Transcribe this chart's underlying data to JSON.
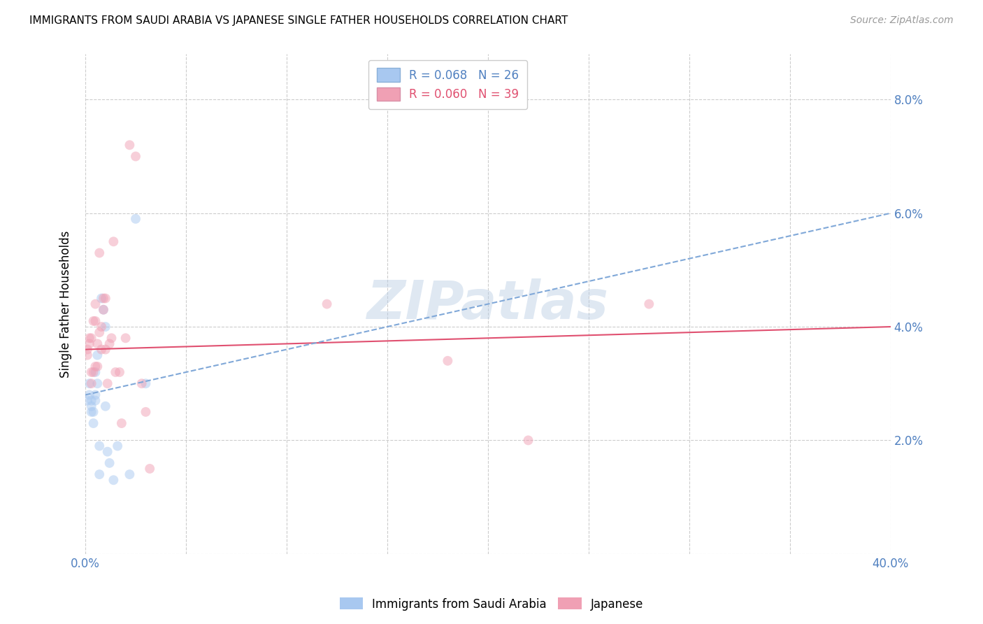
{
  "title": "IMMIGRANTS FROM SAUDI ARABIA VS JAPANESE SINGLE FATHER HOUSEHOLDS CORRELATION CHART",
  "source": "Source: ZipAtlas.com",
  "ylabel": "Single Father Households",
  "xlim": [
    0.0,
    0.4
  ],
  "ylim": [
    0.0,
    0.088
  ],
  "xticks": [
    0.0,
    0.05,
    0.1,
    0.15,
    0.2,
    0.25,
    0.3,
    0.35,
    0.4
  ],
  "yticks": [
    0.0,
    0.02,
    0.04,
    0.06,
    0.08
  ],
  "ytick_labels": [
    "",
    "2.0%",
    "4.0%",
    "6.0%",
    "8.0%"
  ],
  "xtick_labels_show": {
    "0": "0.0%",
    "8": "40.0%"
  },
  "watermark": "ZIPatlas",
  "blue_R": 0.068,
  "blue_N": 26,
  "pink_R": 0.06,
  "pink_N": 39,
  "blue_color": "#a8c8f0",
  "pink_color": "#f0a0b4",
  "blue_line_color": "#3060a0",
  "pink_line_color": "#e05070",
  "blue_dashed_color": "#80a8d8",
  "grid_color": "#cccccc",
  "axis_color": "#5080c0",
  "blue_x": [
    0.001,
    0.002,
    0.002,
    0.003,
    0.003,
    0.003,
    0.004,
    0.004,
    0.005,
    0.005,
    0.005,
    0.006,
    0.006,
    0.007,
    0.007,
    0.008,
    0.009,
    0.01,
    0.01,
    0.011,
    0.012,
    0.014,
    0.016,
    0.022,
    0.025,
    0.03
  ],
  "blue_y": [
    0.027,
    0.028,
    0.03,
    0.025,
    0.026,
    0.027,
    0.023,
    0.025,
    0.027,
    0.028,
    0.032,
    0.03,
    0.035,
    0.014,
    0.019,
    0.045,
    0.043,
    0.026,
    0.04,
    0.018,
    0.016,
    0.013,
    0.019,
    0.014,
    0.059,
    0.03
  ],
  "pink_x": [
    0.001,
    0.001,
    0.002,
    0.002,
    0.003,
    0.003,
    0.003,
    0.004,
    0.004,
    0.005,
    0.005,
    0.005,
    0.006,
    0.006,
    0.007,
    0.007,
    0.008,
    0.008,
    0.009,
    0.009,
    0.01,
    0.01,
    0.011,
    0.012,
    0.013,
    0.014,
    0.015,
    0.017,
    0.018,
    0.02,
    0.022,
    0.025,
    0.028,
    0.03,
    0.032,
    0.12,
    0.18,
    0.22,
    0.28
  ],
  "pink_y": [
    0.035,
    0.036,
    0.037,
    0.038,
    0.03,
    0.032,
    0.038,
    0.032,
    0.041,
    0.033,
    0.041,
    0.044,
    0.033,
    0.037,
    0.039,
    0.053,
    0.036,
    0.04,
    0.043,
    0.045,
    0.036,
    0.045,
    0.03,
    0.037,
    0.038,
    0.055,
    0.032,
    0.032,
    0.023,
    0.038,
    0.072,
    0.07,
    0.03,
    0.025,
    0.015,
    0.044,
    0.034,
    0.02,
    0.044
  ],
  "blue_trend_x0": 0.0,
  "blue_trend_x1": 0.4,
  "blue_trend_y0": 0.028,
  "blue_trend_y1": 0.06,
  "pink_trend_x0": 0.0,
  "pink_trend_x1": 0.4,
  "pink_trend_y0": 0.036,
  "pink_trend_y1": 0.04,
  "legend_blue_label": "Immigrants from Saudi Arabia",
  "legend_pink_label": "Japanese",
  "marker_size": 100,
  "marker_alpha": 0.5
}
